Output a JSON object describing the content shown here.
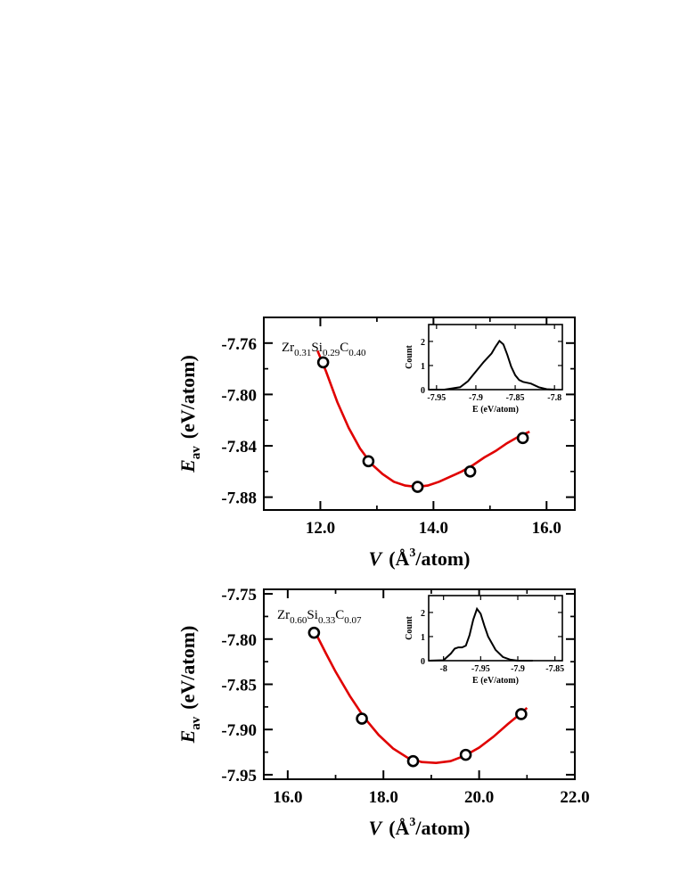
{
  "chart_data": [
    {
      "type": "scatter",
      "composition": {
        "a": "Zr",
        "a_sub": "0.31",
        "b": "Si",
        "b_sub": "0.29",
        "c": "C",
        "c_sub": "0.40"
      },
      "xlabel": {
        "var": "V",
        "unit_pre": "(Å",
        "unit_sup": "3",
        "unit_post": "/atom)"
      },
      "ylabel": {
        "var": "E",
        "sub": "av",
        "unit": "(eV/atom)"
      },
      "xlim": [
        11.0,
        16.5
      ],
      "ylim": [
        -7.89,
        -7.74
      ],
      "xticks": [
        12.0,
        14.0,
        16.0
      ],
      "xtick_labels": [
        "12.0",
        "14.0",
        "16.0"
      ],
      "yticks": [
        -7.76,
        -7.8,
        -7.84,
        -7.88
      ],
      "ytick_labels": [
        "-7.76",
        "-7.80",
        "-7.84",
        "-7.88"
      ],
      "points": {
        "x": [
          12.05,
          12.85,
          13.72,
          14.65,
          15.58
        ],
        "y": [
          -7.775,
          -7.852,
          -7.872,
          -7.86,
          -7.834
        ]
      },
      "fit": {
        "x": [
          11.95,
          12.1,
          12.3,
          12.5,
          12.7,
          12.9,
          13.1,
          13.3,
          13.5,
          13.7,
          13.9,
          14.1,
          14.3,
          14.5,
          14.7,
          14.9,
          15.1,
          15.3,
          15.5,
          15.7
        ],
        "y": [
          -7.766,
          -7.782,
          -7.806,
          -7.826,
          -7.842,
          -7.854,
          -7.862,
          -7.868,
          -7.871,
          -7.872,
          -7.871,
          -7.868,
          -7.864,
          -7.86,
          -7.855,
          -7.849,
          -7.844,
          -7.838,
          -7.833,
          -7.829
        ]
      },
      "color_fit": "#e00000",
      "inset": {
        "type": "line",
        "xlabel": "E (eV/atom)",
        "ylabel": "Count",
        "xlim": [
          -7.96,
          -7.79
        ],
        "ylim": [
          0,
          2.7
        ],
        "xticks": [
          -7.95,
          -7.9,
          -7.85,
          -7.8
        ],
        "xtick_labels": [
          "-7.95",
          "-7.9",
          "-7.85",
          "-7.8"
        ],
        "yticks": [
          0,
          1,
          2
        ],
        "ytick_labels": [
          "0",
          "1",
          "2"
        ],
        "x": [
          -7.96,
          -7.94,
          -7.92,
          -7.91,
          -7.9,
          -7.89,
          -7.88,
          -7.875,
          -7.87,
          -7.865,
          -7.86,
          -7.855,
          -7.85,
          -7.845,
          -7.84,
          -7.83,
          -7.82,
          -7.81,
          -7.8
        ],
        "y": [
          0.0,
          0.0,
          0.1,
          0.35,
          0.75,
          1.15,
          1.5,
          1.78,
          2.02,
          1.88,
          1.45,
          0.95,
          0.6,
          0.4,
          0.32,
          0.25,
          0.1,
          0.02,
          0.0
        ]
      }
    },
    {
      "type": "scatter",
      "composition": {
        "a": "Zr",
        "a_sub": "0.60",
        "b": "Si",
        "b_sub": "0.33",
        "c": "C",
        "c_sub": "0.07"
      },
      "xlabel": {
        "var": "V",
        "unit_pre": "(Å",
        "unit_sup": "3",
        "unit_post": "/atom)"
      },
      "ylabel": {
        "var": "E",
        "sub": "av",
        "unit": "(eV/atom)"
      },
      "xlim": [
        15.5,
        22.0
      ],
      "ylim": [
        -7.955,
        -7.745
      ],
      "xticks": [
        16.0,
        18.0,
        20.0,
        22.0
      ],
      "xtick_labels": [
        "16.0",
        "18.0",
        "20.0",
        "22.0"
      ],
      "yticks": [
        -7.75,
        -7.8,
        -7.85,
        -7.9,
        -7.95
      ],
      "ytick_labels": [
        "-7.75",
        "-7.80",
        "-7.85",
        "-7.90",
        "-7.95"
      ],
      "points": {
        "x": [
          16.55,
          17.55,
          18.62,
          19.72,
          20.88
        ],
        "y": [
          -7.793,
          -7.888,
          -7.935,
          -7.928,
          -7.883
        ]
      },
      "fit": {
        "x": [
          16.55,
          16.8,
          17.0,
          17.3,
          17.6,
          17.9,
          18.2,
          18.5,
          18.8,
          19.1,
          19.4,
          19.7,
          20.0,
          20.3,
          20.6,
          20.9,
          21.0
        ],
        "y": [
          -7.79,
          -7.816,
          -7.836,
          -7.863,
          -7.887,
          -7.906,
          -7.921,
          -7.931,
          -7.936,
          -7.937,
          -7.935,
          -7.929,
          -7.92,
          -7.908,
          -7.894,
          -7.881,
          -7.876
        ]
      },
      "color_fit": "#e00000",
      "inset": {
        "type": "line",
        "xlabel": "E (eV/atom)",
        "ylabel": "Count",
        "xlim": [
          -8.02,
          -7.84
        ],
        "ylim": [
          0,
          2.7
        ],
        "xticks": [
          -8.0,
          -7.95,
          -7.9,
          -7.85
        ],
        "xtick_labels": [
          "-8",
          "-7.95",
          "-7.9",
          "-7.85"
        ],
        "yticks": [
          0,
          1,
          2
        ],
        "ytick_labels": [
          "0",
          "1",
          "2"
        ],
        "x": [
          -8.02,
          -8.0,
          -7.99,
          -7.985,
          -7.98,
          -7.975,
          -7.97,
          -7.965,
          -7.96,
          -7.955,
          -7.95,
          -7.945,
          -7.94,
          -7.93,
          -7.92,
          -7.91,
          -7.9,
          -7.89,
          -7.88
        ],
        "y": [
          0.0,
          0.02,
          0.3,
          0.5,
          0.55,
          0.55,
          0.62,
          1.05,
          1.7,
          2.15,
          1.95,
          1.45,
          1.0,
          0.45,
          0.15,
          0.04,
          0.0,
          0.0,
          0.0
        ]
      }
    }
  ]
}
